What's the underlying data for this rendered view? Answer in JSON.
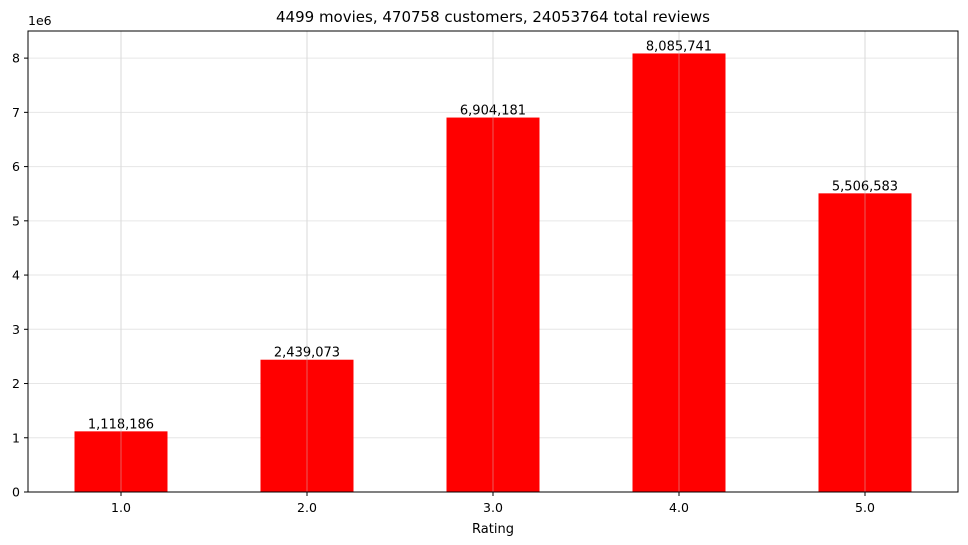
{
  "chart_data": {
    "type": "bar",
    "title": "4499 movies, 470758 customers, 24053764 total reviews",
    "xlabel": "Rating",
    "ylabel": "",
    "y_offset_label": "1e6",
    "y_scale": 1000000,
    "categories": [
      "1.0",
      "2.0",
      "3.0",
      "4.0",
      "5.0"
    ],
    "values": [
      1118186,
      2439073,
      6904181,
      8085741,
      5506583
    ],
    "value_labels": [
      "1,118,186",
      "2,439,073",
      "6,904,181",
      "8,085,741",
      "5,506,583"
    ],
    "ylim": [
      0,
      8500000
    ],
    "yticks": [
      0,
      1,
      2,
      3,
      4,
      5,
      6,
      7,
      8
    ],
    "grid": true,
    "bar_color": "#ff0000"
  }
}
